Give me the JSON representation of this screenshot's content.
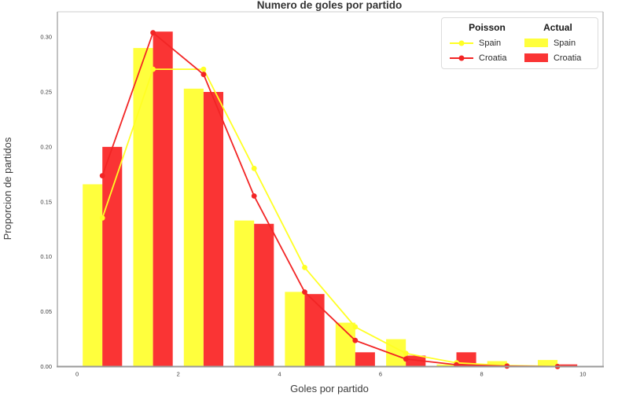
{
  "chart_data": {
    "type": "bar",
    "subtype": "histogram-with-poisson-line-overlay",
    "title": "Numero de goles por partido",
    "xlabel": "Goles por partido",
    "ylabel": "Proporcion de partidos",
    "x_ticks": [
      "0",
      "2",
      "4",
      "6",
      "8",
      "10"
    ],
    "x_tick_values": [
      0,
      2,
      4,
      6,
      8,
      10
    ],
    "y_ticks": [
      "0.00",
      "0.05",
      "0.10",
      "0.15",
      "0.20",
      "0.25",
      "0.30"
    ],
    "y_tick_values": [
      0,
      0.05,
      0.1,
      0.15,
      0.2,
      0.25,
      0.3
    ],
    "xlim": [
      -0.39,
      10.4
    ],
    "ylim": [
      0,
      0.323
    ],
    "grid": false,
    "bin_centers": [
      0.5,
      1.5,
      2.5,
      3.5,
      4.5,
      5.5,
      6.5,
      7.5,
      8.5,
      9.5
    ],
    "bar_half_width": 0.39,
    "bar_series": [
      {
        "name": "Spain",
        "color": "#ffff3d",
        "values": [
          0.166,
          0.29,
          0.253,
          0.133,
          0.068,
          0.04,
          0.025,
          0.002,
          0.005,
          0.006
        ]
      },
      {
        "name": "Croatia",
        "color": "#fa3434",
        "values": [
          0.2,
          0.305,
          0.25,
          0.13,
          0.066,
          0.013,
          0.01,
          0.013,
          0.001,
          0.002
        ]
      }
    ],
    "line_series": [
      {
        "name": "Spain",
        "color": "#ffff24",
        "values": [
          0.1353,
          0.2707,
          0.2707,
          0.1804,
          0.0902,
          0.0361,
          0.012,
          0.0034,
          0.0009,
          0.0002
        ]
      },
      {
        "name": "Croatia",
        "color": "#f22525",
        "values": [
          0.1738,
          0.304,
          0.266,
          0.1553,
          0.0679,
          0.0238,
          0.0069,
          0.0017,
          0.0004,
          0.0001
        ]
      }
    ],
    "legend": {
      "position": "upper right",
      "poisson_title": "Poisson",
      "actual_title": "Actual"
    }
  }
}
